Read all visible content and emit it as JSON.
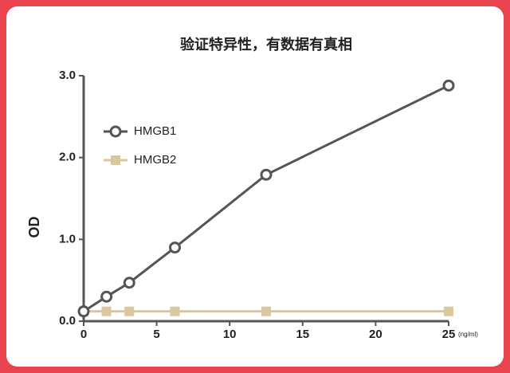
{
  "chart_data": {
    "type": "line",
    "title": "验证特异性，有数据有真相",
    "y_label": "OD",
    "x_unit": "(ng/ml)",
    "x": [
      0,
      1.5625,
      3.125,
      6.25,
      12.5,
      25
    ],
    "series": [
      {
        "name": "HMGB1",
        "color": "#555555",
        "marker": "circle",
        "values": [
          0.12,
          0.3,
          0.47,
          0.9,
          1.79,
          2.88
        ]
      },
      {
        "name": "HMGB2",
        "color": "#d9c89e",
        "marker": "square",
        "values": [
          0.12,
          0.12,
          0.12,
          0.12,
          0.12,
          0.12
        ]
      }
    ],
    "xlim": [
      0,
      25
    ],
    "xticks": [
      0,
      5,
      10,
      15,
      20,
      25
    ],
    "ylim": [
      0,
      3
    ],
    "yticks": [
      {
        "value": 0,
        "label": "0.0"
      },
      {
        "value": 1,
        "label": "1.0"
      },
      {
        "value": 2,
        "label": "2.0"
      },
      {
        "value": 3,
        "label": "3.0"
      }
    ],
    "legend": "upper left",
    "grid": false
  }
}
